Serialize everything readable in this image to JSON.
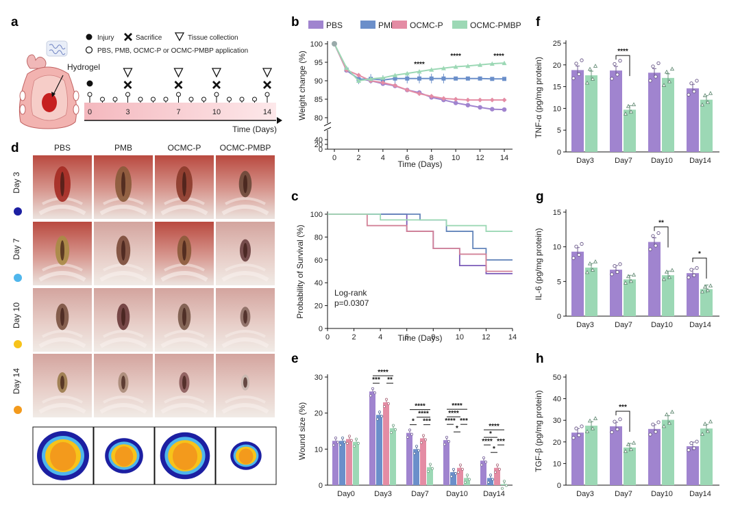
{
  "colors": {
    "PBS": "#a084cf",
    "PMB": "#6b8fca",
    "OCMC-P": "#e48ca4",
    "OCMC-PMBP": "#9cd8b5",
    "day3": "#1c1fa2",
    "day7": "#4fb6ec",
    "day10": "#f7c31a",
    "day14": "#f39a1c"
  },
  "panel_a": {
    "label": "a",
    "hydrogel_label": "Hydrogel",
    "legend": {
      "injury": "Injury",
      "sacrifice": "Sacrifice",
      "tissue": "Tissue collection",
      "application": "PBS, PMB, OCMC-P or OCMC-PMBP application"
    },
    "timeline_ticks": [
      "0",
      "3",
      "7",
      "10",
      "14"
    ],
    "timeline_label": "Time (Days)"
  },
  "panel_d": {
    "label": "d",
    "columns": [
      "PBS",
      "PMB",
      "OCMC-P",
      "OCMC-PMBP"
    ],
    "rows": [
      "Day 3",
      "Day 7",
      "Day 10",
      "Day 14"
    ]
  },
  "chart_data": [
    {
      "panel": "b",
      "type": "line",
      "xlabel": "Time (Days)",
      "ylabel": "Weight change (%)",
      "x_ticks": [
        "0",
        "2",
        "4",
        "6",
        "8",
        "10",
        "12",
        "14"
      ],
      "y_ticks_upper": [
        "100",
        "95",
        "90",
        "85",
        "80"
      ],
      "y_ticks_lower": [
        "40",
        "20",
        "0"
      ],
      "x": [
        0,
        1,
        2,
        3,
        4,
        5,
        6,
        7,
        8,
        9,
        10,
        11,
        12,
        13,
        14
      ],
      "series": [
        {
          "name": "PBS",
          "values": [
            100,
            92.8,
            90.5,
            90,
            89.2,
            88.6,
            87.5,
            86.8,
            85.5,
            84.8,
            84,
            83.4,
            82.8,
            82.3,
            82.2
          ]
        },
        {
          "name": "PMB",
          "values": [
            100,
            93,
            90.4,
            90.5,
            90.2,
            90.6,
            90.6,
            90.6,
            90.6,
            90.6,
            90.6,
            90.6,
            90.6,
            90.5,
            90.5
          ]
        },
        {
          "name": "OCMC-P",
          "values": [
            100,
            92.9,
            91.5,
            90,
            89.5,
            88.7,
            87.5,
            86.5,
            85.8,
            85.2,
            85,
            84.8,
            84.8,
            84.8,
            84.8
          ]
        },
        {
          "name": "OCMC-PMBP",
          "values": [
            100,
            93.5,
            90,
            90.5,
            90.8,
            91.5,
            92,
            92.5,
            93,
            93.4,
            93.8,
            94,
            94.3,
            94.6,
            94.8
          ]
        }
      ],
      "annotations": [
        {
          "x": 7,
          "text": "****"
        },
        {
          "x": 10,
          "text": "****"
        },
        {
          "x": 14,
          "text": "****"
        }
      ]
    },
    {
      "panel": "c",
      "type": "line",
      "xlabel": "Time (Days)",
      "ylabel": "Probability of Survival (%)",
      "x_ticks": [
        "0",
        "2",
        "4",
        "6",
        "8",
        "10",
        "12",
        "14"
      ],
      "y_ticks": [
        "100",
        "80",
        "60",
        "40",
        "20",
        "0"
      ],
      "annotation": [
        "Log-rank",
        "p=0.0307"
      ],
      "series": [
        {
          "name": "PBS",
          "steps": [
            [
              0,
              100
            ],
            [
              6,
              100
            ],
            [
              6,
              85
            ],
            [
              8,
              85
            ],
            [
              8,
              70
            ],
            [
              10,
              70
            ],
            [
              10,
              55
            ],
            [
              12,
              55
            ],
            [
              12,
              48
            ],
            [
              14,
              48
            ]
          ]
        },
        {
          "name": "PMB",
          "steps": [
            [
              0,
              100
            ],
            [
              7,
              100
            ],
            [
              7,
              95
            ],
            [
              9,
              95
            ],
            [
              9,
              85
            ],
            [
              11,
              85
            ],
            [
              11,
              70
            ],
            [
              12,
              70
            ],
            [
              12,
              60
            ],
            [
              14,
              60
            ]
          ]
        },
        {
          "name": "OCMC-P",
          "steps": [
            [
              0,
              100
            ],
            [
              3,
              100
            ],
            [
              3,
              90
            ],
            [
              6,
              90
            ],
            [
              6,
              85
            ],
            [
              8,
              85
            ],
            [
              8,
              70
            ],
            [
              10,
              70
            ],
            [
              10,
              65
            ],
            [
              12,
              65
            ],
            [
              12,
              50
            ],
            [
              14,
              50
            ]
          ]
        },
        {
          "name": "OCMC-PMBP",
          "steps": [
            [
              0,
              100
            ],
            [
              4,
              100
            ],
            [
              4,
              95
            ],
            [
              9,
              95
            ],
            [
              9,
              90
            ],
            [
              12,
              90
            ],
            [
              12,
              85
            ],
            [
              14,
              85
            ]
          ]
        }
      ]
    },
    {
      "panel": "e",
      "type": "bar",
      "ylabel": "Wound size (%)",
      "categories": [
        "Day0",
        "Day3",
        "Day7",
        "Day10",
        "Day14"
      ],
      "y_ticks": [
        "0",
        "10",
        "20",
        "30"
      ],
      "ylim": [
        0,
        30
      ],
      "series": [
        {
          "name": "PBS",
          "values": [
            12.3,
            26,
            14.5,
            12.5,
            6.8
          ]
        },
        {
          "name": "PMB",
          "values": [
            12.3,
            19.5,
            10,
            3.6,
            2
          ]
        },
        {
          "name": "OCMC-P",
          "values": [
            12.8,
            23,
            13,
            4.8,
            4.8
          ]
        },
        {
          "name": "OCMC-PMBP",
          "values": [
            12,
            15.8,
            5,
            2,
            0.3
          ]
        }
      ],
      "significance": [
        {
          "cat": 1,
          "a": 0,
          "b": 1,
          "text": "***",
          "level": 0
        },
        {
          "cat": 1,
          "a": 2,
          "b": 3,
          "text": "**",
          "level": 0
        },
        {
          "cat": 1,
          "a": 0,
          "b": 3,
          "text": "****",
          "level": 1
        },
        {
          "cat": 2,
          "a": 0,
          "b": 1,
          "text": "*",
          "level": 0
        },
        {
          "cat": 2,
          "a": 2,
          "b": 3,
          "text": "***",
          "level": 0
        },
        {
          "cat": 2,
          "a": 1,
          "b": 3,
          "text": "****",
          "level": 1
        },
        {
          "cat": 2,
          "a": 0,
          "b": 3,
          "text": "****",
          "level": 2
        },
        {
          "cat": 3,
          "a": 1,
          "b": 2,
          "text": "*",
          "level": 0
        },
        {
          "cat": 3,
          "a": 0,
          "b": 1,
          "text": "****",
          "level": 1
        },
        {
          "cat": 3,
          "a": 2,
          "b": 3,
          "text": "***",
          "level": 1
        },
        {
          "cat": 3,
          "a": 0,
          "b": 2,
          "text": "****",
          "level": 2
        },
        {
          "cat": 3,
          "a": 0,
          "b": 3,
          "text": "****",
          "level": 3
        },
        {
          "cat": 4,
          "a": 1,
          "b": 2,
          "text": "*",
          "level": 0
        },
        {
          "cat": 4,
          "a": 0,
          "b": 1,
          "text": "****",
          "level": 1
        },
        {
          "cat": 4,
          "a": 2,
          "b": 3,
          "text": "***",
          "level": 1
        },
        {
          "cat": 4,
          "a": 0,
          "b": 2,
          "text": "*",
          "level": 2
        },
        {
          "cat": 4,
          "a": 0,
          "b": 3,
          "text": "****",
          "level": 3
        }
      ]
    },
    {
      "panel": "f",
      "type": "bar",
      "ylabel": "TNF-α (pg/mg protein)",
      "categories": [
        "Day3",
        "Day7",
        "Day10",
        "Day14"
      ],
      "y_ticks": [
        "0",
        "5",
        "10",
        "15",
        "20",
        "25"
      ],
      "ylim": [
        0,
        25
      ],
      "series": [
        {
          "name": "PBS",
          "values": [
            18.8,
            18.7,
            18.2,
            14.6
          ]
        },
        {
          "name": "OCMC-PMBP",
          "values": [
            17.6,
            9.7,
            17,
            12
          ]
        }
      ],
      "significance": [
        {
          "cat": 1,
          "text": "****"
        }
      ]
    },
    {
      "panel": "g",
      "type": "bar",
      "ylabel": "IL-6 (pg/mg protein)",
      "categories": [
        "Day3",
        "Day7",
        "Day10",
        "Day14"
      ],
      "y_ticks": [
        "0",
        "5",
        "10",
        "15"
      ],
      "ylim": [
        0,
        15
      ],
      "series": [
        {
          "name": "PBS",
          "values": [
            9.3,
            6.7,
            10.7,
            6.2
          ]
        },
        {
          "name": "OCMC-PMBP",
          "values": [
            7,
            5.3,
            5.9,
            3.9
          ]
        }
      ],
      "significance": [
        {
          "cat": 2,
          "text": "**"
        },
        {
          "cat": 3,
          "text": "*"
        }
      ]
    },
    {
      "panel": "h",
      "type": "bar",
      "ylabel": "TGF-β (pg/mg protein)",
      "categories": [
        "Day3",
        "Day7",
        "Day10",
        "Day14"
      ],
      "y_ticks": [
        "0",
        "10",
        "20",
        "30",
        "40",
        "50"
      ],
      "ylim": [
        0,
        50
      ],
      "series": [
        {
          "name": "PBS",
          "values": [
            24.3,
            27.2,
            26,
            18
          ]
        },
        {
          "name": "OCMC-PMBP",
          "values": [
            27.5,
            17.4,
            30.2,
            26.2
          ]
        }
      ],
      "significance": [
        {
          "cat": 1,
          "text": "***"
        }
      ]
    }
  ]
}
